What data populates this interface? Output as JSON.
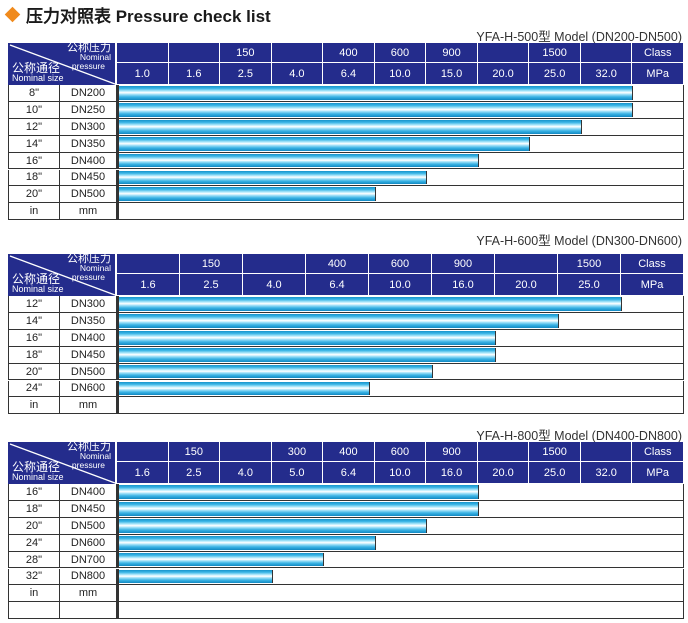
{
  "heading": {
    "title": "压力对照表 Pressure check list",
    "bullet_icon": "diamond-icon",
    "bullet_color": "#f08a1c"
  },
  "header_color": "#242c8c",
  "corner": {
    "pressure_zh": "公称压力",
    "pressure_en_1": "Nominal",
    "pressure_en_2": "pressure",
    "size_zh": "公称通径",
    "size_en": "Nominal size"
  },
  "tables": [
    {
      "model": "YFA-H-500型  Model (DN200-DN500)",
      "class_row": [
        "",
        "",
        "150",
        "",
        "400",
        "600",
        "900",
        "",
        "1500",
        "",
        "Class"
      ],
      "mpa_row": [
        "1.0",
        "1.6",
        "2.5",
        "4.0",
        "6.4",
        "10.0",
        "15.0",
        "20.0",
        "25.0",
        "32.0",
        "MPa"
      ],
      "rows": [
        {
          "inch": "8\"",
          "dn": "DN200",
          "max_pressure_mpa": "32.0"
        },
        {
          "inch": "10\"",
          "dn": "DN250",
          "max_pressure_mpa": "32.0"
        },
        {
          "inch": "12\"",
          "dn": "DN300",
          "max_pressure_mpa": "25.0"
        },
        {
          "inch": "14\"",
          "dn": "DN350",
          "max_pressure_mpa": "20.0"
        },
        {
          "inch": "16\"",
          "dn": "DN400",
          "max_pressure_mpa": "15.0"
        },
        {
          "inch": "18\"",
          "dn": "DN450",
          "max_pressure_mpa": "10.0"
        },
        {
          "inch": "20\"",
          "dn": "DN500",
          "max_pressure_mpa": "6.4"
        },
        {
          "inch": "in",
          "dn": "mm",
          "max_pressure_mpa": null
        }
      ]
    },
    {
      "model": "YFA-H-600型  Model (DN300-DN600)",
      "class_row": [
        "",
        "150",
        "",
        "400",
        "600",
        "900",
        "",
        "1500",
        "Class"
      ],
      "mpa_row": [
        "1.6",
        "2.5",
        "4.0",
        "6.4",
        "10.0",
        "16.0",
        "20.0",
        "25.0",
        "MPa"
      ],
      "rows": [
        {
          "inch": "12\"",
          "dn": "DN300",
          "max_pressure_mpa": "25.0"
        },
        {
          "inch": "14\"",
          "dn": "DN350",
          "max_pressure_mpa": "20.0"
        },
        {
          "inch": "16\"",
          "dn": "DN400",
          "max_pressure_mpa": "16.0"
        },
        {
          "inch": "18\"",
          "dn": "DN450",
          "max_pressure_mpa": "16.0"
        },
        {
          "inch": "20\"",
          "dn": "DN500",
          "max_pressure_mpa": "10.0"
        },
        {
          "inch": "24\"",
          "dn": "DN600",
          "max_pressure_mpa": "6.4"
        },
        {
          "inch": "in",
          "dn": "mm",
          "max_pressure_mpa": null
        }
      ]
    },
    {
      "model": "YFA-H-800型  Model (DN400-DN800)",
      "class_row": [
        "",
        "150",
        "",
        "300",
        "400",
        "600",
        "900",
        "",
        "1500",
        "",
        "Class"
      ],
      "mpa_row": [
        "1.6",
        "2.5",
        "4.0",
        "5.0",
        "6.4",
        "10.0",
        "16.0",
        "20.0",
        "25.0",
        "32.0",
        "MPa"
      ],
      "rows": [
        {
          "inch": "16\"",
          "dn": "DN400",
          "max_pressure_mpa": "16.0"
        },
        {
          "inch": "18\"",
          "dn": "DN450",
          "max_pressure_mpa": "16.0"
        },
        {
          "inch": "20\"",
          "dn": "DN500",
          "max_pressure_mpa": "10.0"
        },
        {
          "inch": "24\"",
          "dn": "DN600",
          "max_pressure_mpa": "6.4"
        },
        {
          "inch": "28\"",
          "dn": "DN700",
          "max_pressure_mpa": "5.0"
        },
        {
          "inch": "32\"",
          "dn": "DN800",
          "max_pressure_mpa": "4.0"
        },
        {
          "inch": "in",
          "dn": "mm",
          "max_pressure_mpa": null
        },
        {
          "inch": "",
          "dn": "",
          "max_pressure_mpa": null
        }
      ]
    }
  ]
}
